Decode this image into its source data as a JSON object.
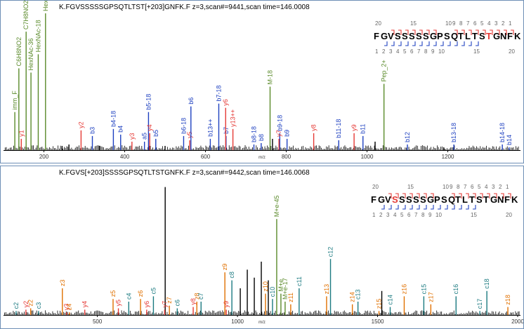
{
  "chart_data": [
    {
      "type": "bar",
      "title": "K.FGVSSSSSGPSQTLTST[+203]GNFK.F z=3,scan#=9441,scan time=146.0008",
      "xlabel": "m/z",
      "xlim": [
        100,
        1380
      ],
      "ylim": [
        0,
        100
      ],
      "xticks": [
        200,
        400,
        600,
        800,
        1000,
        1200
      ],
      "sequence": [
        "F",
        "G",
        "V",
        "S",
        "S",
        "S",
        "S",
        "S",
        "G",
        "P",
        "S",
        "Q",
        "T",
        "L",
        "T",
        "S",
        "T",
        "G",
        "N",
        "F",
        "K"
      ],
      "modified_position": 17,
      "top_numbers": [
        {
          "text": "20",
          "pos": 1
        },
        {
          "text": "15",
          "pos": 6
        },
        {
          "text": "10",
          "pos": 11
        },
        {
          "text": "9",
          "pos": 12
        },
        {
          "text": "8",
          "pos": 13
        },
        {
          "text": "7",
          "pos": 14
        },
        {
          "text": "6",
          "pos": 15
        },
        {
          "text": "5",
          "pos": 16
        },
        {
          "text": "4",
          "pos": 17
        },
        {
          "text": "3",
          "pos": 18
        },
        {
          "text": "2",
          "pos": 19
        },
        {
          "text": "1",
          "pos": 20
        }
      ],
      "bottom_numbers": [
        {
          "text": "1",
          "pos": 1
        },
        {
          "text": "2",
          "pos": 2
        },
        {
          "text": "3",
          "pos": 3
        },
        {
          "text": "4",
          "pos": 4
        },
        {
          "text": "5",
          "pos": 5
        },
        {
          "text": "6",
          "pos": 6
        },
        {
          "text": "7",
          "pos": 7
        },
        {
          "text": "8",
          "pos": 8
        },
        {
          "text": "9",
          "pos": 9
        },
        {
          "text": "10",
          "pos": 10
        },
        {
          "text": "15",
          "pos": 15
        },
        {
          "text": "20",
          "pos": 20
        }
      ],
      "top_brackets": [
        3,
        4,
        5,
        6,
        7,
        8,
        9,
        12,
        13,
        14,
        15,
        16,
        17,
        18,
        19,
        20
      ],
      "bottom_brackets": [
        2,
        3,
        4,
        5,
        6,
        7,
        8,
        9,
        10,
        11,
        12,
        13,
        14,
        15
      ],
      "peaks": [
        {
          "mz": 128,
          "y": 27,
          "label": "imm_F",
          "color": "#5a8a2a"
        },
        {
          "mz": 138,
          "y": 58,
          "label": "C6H8NO2",
          "color": "#5a8a2a"
        },
        {
          "mz": 144,
          "y": 8,
          "label": "y1",
          "color": "#e53935"
        },
        {
          "mz": 156,
          "y": 84,
          "label": "C7H8NO2",
          "color": "#5a8a2a"
        },
        {
          "mz": 168,
          "y": 55,
          "label": "HexNAc-36",
          "color": "#5a8a2a"
        },
        {
          "mz": 186,
          "y": 68,
          "label": "HexNAc-18",
          "color": "#5a8a2a"
        },
        {
          "mz": 204,
          "y": 97,
          "label": "HexNAc",
          "color": "#5a8a2a"
        },
        {
          "mz": 245,
          "y": 3,
          "label": "",
          "color": "#000000"
        },
        {
          "mz": 262,
          "y": 4,
          "label": "",
          "color": "#000000"
        },
        {
          "mz": 292,
          "y": 14,
          "label": "y2",
          "color": "#e53935"
        },
        {
          "mz": 320,
          "y": 10,
          "label": "b3",
          "color": "#1e40c0"
        },
        {
          "mz": 338,
          "y": 3,
          "label": "",
          "color": "#000000"
        },
        {
          "mz": 372,
          "y": 15,
          "label": "b4-18",
          "color": "#1e40c0"
        },
        {
          "mz": 390,
          "y": 11,
          "label": "b4",
          "color": "#1e40c0"
        },
        {
          "mz": 418,
          "y": 6,
          "label": "y3",
          "color": "#e53935"
        },
        {
          "mz": 449,
          "y": 6,
          "label": "a5",
          "color": "#1e40c0"
        },
        {
          "mz": 459,
          "y": 27,
          "label": "b5-18",
          "color": "#1e40c0"
        },
        {
          "mz": 462,
          "y": 12,
          "label": "y4",
          "color": "#e53935"
        },
        {
          "mz": 477,
          "y": 8,
          "label": "b5",
          "color": "#1e40c0"
        },
        {
          "mz": 500,
          "y": 3,
          "label": "",
          "color": "#000000"
        },
        {
          "mz": 546,
          "y": 10,
          "label": "b6-18",
          "color": "#1e40c0"
        },
        {
          "mz": 561,
          "y": 7,
          "label": "y5",
          "color": "#e53935"
        },
        {
          "mz": 564,
          "y": 31,
          "label": "b6",
          "color": "#1e40c0"
        },
        {
          "mz": 612,
          "y": 8,
          "label": "b13++",
          "color": "#1e40c0"
        },
        {
          "mz": 633,
          "y": 33,
          "label": "b7-18",
          "color": "#1e40c0"
        },
        {
          "mz": 651,
          "y": 10,
          "label": "b7",
          "color": "#1e40c0"
        },
        {
          "mz": 650,
          "y": 30,
          "label": "y6",
          "color": "#e53935"
        },
        {
          "mz": 668,
          "y": 15,
          "label": "y13++",
          "color": "#e53935"
        },
        {
          "mz": 720,
          "y": 4,
          "label": "b8-18",
          "color": "#1e40c0"
        },
        {
          "mz": 738,
          "y": 5,
          "label": "b8",
          "color": "#1e40c0"
        },
        {
          "mz": 760,
          "y": 45,
          "label": "M-18",
          "color": "#5a8a2a"
        },
        {
          "mz": 766,
          "y": 8,
          "label": "",
          "color": "#000000"
        },
        {
          "mz": 784,
          "y": 12,
          "label": "b9-18",
          "color": "#1e40c0"
        },
        {
          "mz": 782,
          "y": 8,
          "label": "y7",
          "color": "#e53935"
        },
        {
          "mz": 802,
          "y": 8,
          "label": "b9",
          "color": "#1e40c0"
        },
        {
          "mz": 868,
          "y": 12,
          "label": "y8",
          "color": "#e53935"
        },
        {
          "mz": 930,
          "y": 7,
          "label": "b11-18",
          "color": "#1e40c0"
        },
        {
          "mz": 968,
          "y": 12,
          "label": "y9",
          "color": "#e53935"
        },
        {
          "mz": 990,
          "y": 10,
          "label": "b11",
          "color": "#1e40c0"
        },
        {
          "mz": 1020,
          "y": 6,
          "label": "",
          "color": "#000000"
        },
        {
          "mz": 1042,
          "y": 47,
          "label": "Pep_2+",
          "color": "#5a8a2a"
        },
        {
          "mz": 1100,
          "y": 4,
          "label": "b12",
          "color": "#1e40c0"
        },
        {
          "mz": 1190,
          "y": 2,
          "label": "",
          "color": "#000000"
        },
        {
          "mz": 1215,
          "y": 4,
          "label": "b13-18",
          "color": "#1e40c0"
        },
        {
          "mz": 1335,
          "y": 4,
          "label": "b14-18",
          "color": "#1e40c0"
        },
        {
          "mz": 1352,
          "y": 2,
          "label": "b14",
          "color": "#1e40c0"
        }
      ]
    },
    {
      "type": "bar",
      "title": "K.FGVS[+203]SSSSGPSQTLTSTGNFK.F z=3,scan#=9442,scan time=146.0068",
      "xlabel": "m/z",
      "xlim": [
        165,
        2010
      ],
      "ylim": [
        0,
        100
      ],
      "xticks": [
        500,
        1000,
        1500,
        2000
      ],
      "sequence": [
        "F",
        "G",
        "V",
        "S",
        "S",
        "S",
        "S",
        "S",
        "G",
        "P",
        "S",
        "Q",
        "T",
        "L",
        "T",
        "S",
        "T",
        "G",
        "N",
        "F",
        "K"
      ],
      "modified_position": 4,
      "top_numbers": [
        {
          "text": "20",
          "pos": 1
        },
        {
          "text": "15",
          "pos": 6
        },
        {
          "text": "10",
          "pos": 11
        },
        {
          "text": "9",
          "pos": 12
        },
        {
          "text": "8",
          "pos": 13
        },
        {
          "text": "7",
          "pos": 14
        },
        {
          "text": "6",
          "pos": 15
        },
        {
          "text": "5",
          "pos": 16
        },
        {
          "text": "4",
          "pos": 17
        },
        {
          "text": "3",
          "pos": 18
        },
        {
          "text": "2",
          "pos": 19
        },
        {
          "text": "1",
          "pos": 20
        }
      ],
      "bottom_numbers": [
        {
          "text": "1",
          "pos": 1
        },
        {
          "text": "2",
          "pos": 2
        },
        {
          "text": "3",
          "pos": 3
        },
        {
          "text": "4",
          "pos": 4
        },
        {
          "text": "5",
          "pos": 5
        },
        {
          "text": "6",
          "pos": 6
        },
        {
          "text": "7",
          "pos": 7
        },
        {
          "text": "8",
          "pos": 8
        },
        {
          "text": "9",
          "pos": 9
        },
        {
          "text": "10",
          "pos": 10
        },
        {
          "text": "15",
          "pos": 15
        },
        {
          "text": "20",
          "pos": 20
        }
      ],
      "top_brackets": [
        3,
        4,
        5,
        6,
        7,
        8,
        9,
        12,
        13,
        14,
        15,
        16,
        17,
        18,
        19,
        20
      ],
      "bottom_brackets": [
        2,
        3,
        4,
        5,
        6,
        7,
        8,
        9,
        10,
        11,
        12,
        13,
        14,
        15
      ],
      "peaks": [
        {
          "mz": 210,
          "y": 3,
          "label": "c2",
          "color": "#1b7a80"
        },
        {
          "mz": 245,
          "y": 4,
          "label": "y2",
          "color": "#e53935"
        },
        {
          "mz": 262,
          "y": 5,
          "label": "z2",
          "color": "#e07000"
        },
        {
          "mz": 290,
          "y": 3,
          "label": "c3",
          "color": "#1b7a80"
        },
        {
          "mz": 375,
          "y": 20,
          "label": "z3",
          "color": "#e07000"
        },
        {
          "mz": 390,
          "y": 2,
          "label": "y3",
          "color": "#e53935"
        },
        {
          "mz": 400,
          "y": 2,
          "label": "z4",
          "color": "#e07000"
        },
        {
          "mz": 455,
          "y": 4,
          "label": "y4",
          "color": "#e53935"
        },
        {
          "mz": 556,
          "y": 12,
          "label": "z5",
          "color": "#e07000"
        },
        {
          "mz": 575,
          "y": 5,
          "label": "y5",
          "color": "#e53935"
        },
        {
          "mz": 612,
          "y": 10,
          "label": "c4",
          "color": "#1b7a80"
        },
        {
          "mz": 654,
          "y": 12,
          "label": "z6",
          "color": "#e07000"
        },
        {
          "mz": 676,
          "y": 4,
          "label": "y6",
          "color": "#e53935"
        },
        {
          "mz": 700,
          "y": 14,
          "label": "c5",
          "color": "#1b7a80"
        },
        {
          "mz": 742,
          "y": 96,
          "label": "",
          "color": "#000000"
        },
        {
          "mz": 740,
          "y": 4,
          "label": "y7",
          "color": "#e53935"
        },
        {
          "mz": 757,
          "y": 7,
          "label": "z7",
          "color": "#e07000"
        },
        {
          "mz": 785,
          "y": 5,
          "label": "c6",
          "color": "#1b7a80"
        },
        {
          "mz": 842,
          "y": 6,
          "label": "y8",
          "color": "#e53935"
        },
        {
          "mz": 855,
          "y": 10,
          "label": "z8",
          "color": "#e07000"
        },
        {
          "mz": 870,
          "y": 10,
          "label": "c7",
          "color": "#1b7a80"
        },
        {
          "mz": 955,
          "y": 32,
          "label": "z9",
          "color": "#e07000"
        },
        {
          "mz": 960,
          "y": 4,
          "label": "y9",
          "color": "#e53935"
        },
        {
          "mz": 980,
          "y": 26,
          "label": "c8",
          "color": "#1b7a80"
        },
        {
          "mz": 1010,
          "y": 20,
          "label": "",
          "color": "#000000"
        },
        {
          "mz": 1035,
          "y": 34,
          "label": "",
          "color": "#000000"
        },
        {
          "mz": 1060,
          "y": 28,
          "label": "",
          "color": "#000000"
        },
        {
          "mz": 1085,
          "y": 40,
          "label": "",
          "color": "#000000"
        },
        {
          "mz": 1100,
          "y": 16,
          "label": "z10",
          "color": "#e07000"
        },
        {
          "mz": 1110,
          "y": 26,
          "label": "",
          "color": "#000000"
        },
        {
          "mz": 1125,
          "y": 12,
          "label": "c10",
          "color": "#1b7a80"
        },
        {
          "mz": 1140,
          "y": 72,
          "label": "M+e-45",
          "color": "#5a8a2a"
        },
        {
          "mz": 1155,
          "y": 16,
          "label": "M+e",
          "color": "#5a8a2a"
        },
        {
          "mz": 1170,
          "y": 10,
          "label": "M+e-17",
          "color": "#5a8a2a"
        },
        {
          "mz": 1190,
          "y": 8,
          "label": "z11",
          "color": "#e07000"
        },
        {
          "mz": 1220,
          "y": 20,
          "label": "c11",
          "color": "#1b7a80"
        },
        {
          "mz": 1318,
          "y": 14,
          "label": "z13",
          "color": "#e07000"
        },
        {
          "mz": 1332,
          "y": 42,
          "label": "c12",
          "color": "#1b7a80"
        },
        {
          "mz": 1410,
          "y": 8,
          "label": "z14",
          "color": "#e07000"
        },
        {
          "mz": 1430,
          "y": 10,
          "label": "c13",
          "color": "#1b7a80"
        },
        {
          "mz": 1505,
          "y": 3,
          "label": "z15",
          "color": "#e07000"
        },
        {
          "mz": 1515,
          "y": 18,
          "label": "",
          "color": "#000000"
        },
        {
          "mz": 1545,
          "y": 6,
          "label": "c14",
          "color": "#1b7a80"
        },
        {
          "mz": 1595,
          "y": 14,
          "label": "z16",
          "color": "#e07000"
        },
        {
          "mz": 1665,
          "y": 14,
          "label": "c15",
          "color": "#1b7a80"
        },
        {
          "mz": 1690,
          "y": 8,
          "label": "z17",
          "color": "#e07000"
        },
        {
          "mz": 1780,
          "y": 14,
          "label": "c16",
          "color": "#1b7a80"
        },
        {
          "mz": 1865,
          "y": 3,
          "label": "c17",
          "color": "#1b7a80"
        },
        {
          "mz": 1890,
          "y": 18,
          "label": "c18",
          "color": "#1b7a80"
        },
        {
          "mz": 1965,
          "y": 6,
          "label": "z18",
          "color": "#e07000"
        }
      ]
    }
  ]
}
